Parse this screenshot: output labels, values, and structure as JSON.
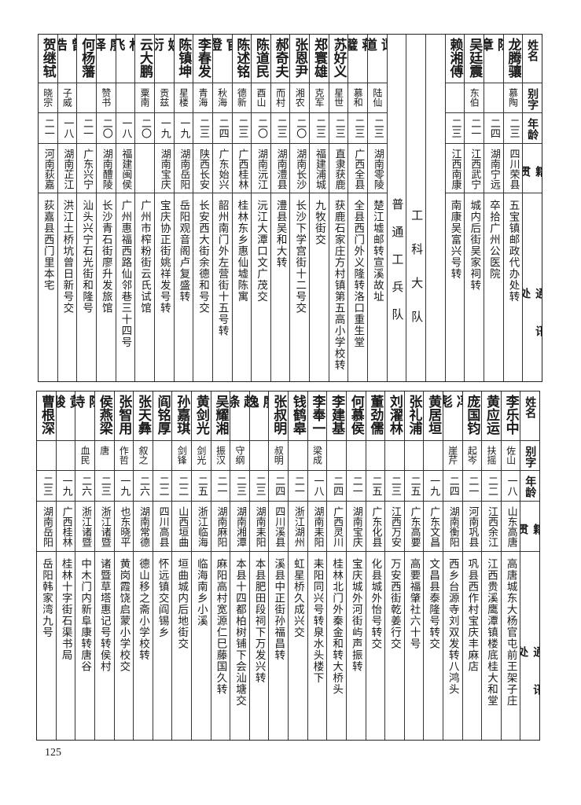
{
  "header_labels": {
    "name": "姓名",
    "alias": "别字",
    "age": "年龄",
    "native": "籍贯",
    "address": "通讯处"
  },
  "top_table": {
    "columns": [
      {
        "name": "龙腾骧",
        "alias": "慕陶",
        "age": "二三",
        "native": "四川荣县",
        "address": "五宝镇邮政代办处转"
      },
      {
        "name": "陈章",
        "alias": "",
        "age": "二四",
        "native": "湖南宁远",
        "address": "卒拾广州公医院"
      },
      {
        "name": "吴廷震",
        "alias": "东伯",
        "age": "二一",
        "native": "江西武宁",
        "address": "城内后街吴家祠转"
      },
      {
        "name": "赖湘傅",
        "alias": "",
        "age": "二三",
        "native": "江西南康",
        "address": "南康吴富兴号转"
      },
      {
        "section": ""
      },
      {
        "section": "工科大队"
      },
      {
        "section": "普通工兵队"
      },
      {
        "name": "谭道",
        "alias": "陆仙",
        "age": "二三",
        "native": "湖南零陵",
        "address": "楚江墟邮转宣溪故址"
      },
      {
        "name": "蒋璧",
        "alias": "慕和",
        "age": "二三",
        "native": "广西全县",
        "address": "全县西门外义隆转洛口重生堂"
      },
      {
        "name": "苏好义",
        "alias": "星世",
        "age": "二三",
        "native": "直隶获鹿",
        "address": "获鹿石家庄方村镇第五高小学校转"
      },
      {
        "name": "郑寰雄",
        "alias": "克军",
        "age": "二三",
        "native": "福建浦城",
        "address": "九牧街交"
      },
      {
        "name": "张恩尹",
        "alias": "湘农",
        "age": "二〇",
        "native": "湖南长沙",
        "address": "长沙下学宫街十二号交"
      },
      {
        "name": "郝奇夫",
        "alias": "而村",
        "age": "二三",
        "native": "湖南澧县",
        "address": "澧县吴和大转"
      },
      {
        "name": "陈道民",
        "alias": "酉山",
        "age": "二〇",
        "native": "湖南沅江",
        "address": "沅江大潭口文广茂交"
      },
      {
        "name": "陈述铭",
        "alias": "德新",
        "age": "二三",
        "native": "广西桂林",
        "address": "桂林东乡惠仙墟陈寓"
      },
      {
        "name": "官澄",
        "alias": "秋海",
        "age": "二四",
        "native": "广东始兴",
        "address": "韶州南门外左营街十五号转"
      },
      {
        "name": "李春发",
        "alias": "青海",
        "age": "二三",
        "native": "陕西长安",
        "address": "长安西大街余德和号交"
      },
      {
        "name": "陈镇坤",
        "alias": "星楼",
        "age": "一九",
        "native": "湖南岳阳",
        "address": "岳阳观音阁卢复盛转"
      },
      {
        "name": "姚衍",
        "alias": "贡兹",
        "age": "一九",
        "native": "湖南宝庆",
        "address": "宝庆协正街姚祥发号转"
      },
      {
        "name": "云大鹏",
        "alias": "粟南",
        "age": "二〇",
        "native": "",
        "address": "广州市榨粉街云氏试馆"
      },
      {
        "name": "林飞",
        "alias": "",
        "age": "一八",
        "native": "福建闽侯",
        "address": "广州惠福西路仙邻巷三十四号"
      },
      {
        "name": "廖译",
        "alias": "赞书",
        "age": "二〇",
        "native": "湖南醴陵",
        "address": "长沙青石街廖升发旅馆"
      },
      {
        "name": "何杨藩",
        "alias": "",
        "age": "二一",
        "native": "广东兴宁",
        "address": "汕头兴宁石光街和隆号"
      },
      {
        "name": "曾浩",
        "alias": "子威",
        "age": "一八",
        "native": "湖南芷江",
        "address": "洪江土桥坑曾日新号交"
      },
      {
        "name": "贺继轼",
        "alias": "晓宗",
        "age": "二一",
        "native": "河南荻嘉",
        "address": "荻嘉县西门里本宅"
      }
    ]
  },
  "bottom_table": {
    "columns": [
      {
        "name": "李乐中",
        "alias": "佐山",
        "age": "一八",
        "native": "山东高唐",
        "address": "高唐城东大杨官屯前王架子庄"
      },
      {
        "name": "黄应运",
        "alias": "扶摇",
        "age": "二二",
        "native": "江西余江",
        "address": "江西贵溪鹰潭镇楼底桂大和堂"
      },
      {
        "name": "庞国钧",
        "alias": "起岑",
        "age": "二一",
        "native": "河南巩县",
        "address": "巩县西作村宝庆丰麻店"
      },
      {
        "name": "冯彪",
        "alias": "崖芹",
        "age": "二四",
        "native": "湖南衡阳",
        "address": "西乡台源寺刘双发转八鸿头"
      },
      {
        "name": "黄居垣",
        "alias": "",
        "age": "一九",
        "native": "广东文昌",
        "address": "文昌县泰隆号转交"
      },
      {
        "name": "张礼浦",
        "alias": "",
        "age": "二五",
        "native": "广东高要",
        "address": "高要福肇社六十号"
      },
      {
        "name": "刘濯林",
        "alias": "",
        "age": "二三",
        "native": "江西万安",
        "address": "万安西街乾姜行交"
      },
      {
        "name": "董劲儒",
        "alias": "",
        "age": "二五",
        "native": "广东化县",
        "address": "化县城外怡号转交"
      },
      {
        "name": "何慕侯",
        "alias": "",
        "age": "二一",
        "native": "湖南宝庆",
        "address": "宝庆城外河街屿声振转"
      },
      {
        "name": "李建基",
        "alias": "",
        "age": "二四",
        "native": "广西灵川",
        "address": "桂林北门外秦金和转大桥头"
      },
      {
        "name": "李奉一",
        "alias": "梁成",
        "age": "一八",
        "native": "湖南耒阳",
        "address": "耒阳同兴号转泉水头楼下"
      },
      {
        "name": "钱鹤皋",
        "alias": "",
        "age": "二一",
        "native": "浙江湖州",
        "address": "虹星桥久成兴交"
      },
      {
        "name": "张叔明",
        "alias": "叔明",
        "age": "二四",
        "native": "四川溪县",
        "address": "溪县中正街孙福昌转"
      },
      {
        "name": "廖逸",
        "alias": "",
        "age": "二三",
        "native": "湖南耒阳",
        "address": "本县肥田段祠下万发兴转"
      },
      {
        "name": "赵涤",
        "alias": "守纲",
        "age": "二三",
        "native": "湖南湘潭",
        "address": "本县十四都柏树铺下会汕塘交"
      },
      {
        "name": "吴耀湘",
        "alias": "振汉",
        "age": "二一",
        "native": "湖南麻阳",
        "address": "麻阳高村宽源仁巳藤国久转"
      },
      {
        "name": "黄剑光",
        "alias": "剑光",
        "age": "二五",
        "native": "浙江临海",
        "address": "临海南乡小溪"
      },
      {
        "name": "孙嘉琪",
        "alias": "剑锋",
        "age": "二二",
        "native": "山西垣曲",
        "address": "垣曲城内后地街交"
      },
      {
        "name": "阎铭厚",
        "alias": "",
        "age": "二二",
        "native": "四川高县",
        "address": "怀远镇交阎锡乡"
      },
      {
        "name": "张天彝",
        "alias": "叙之",
        "age": "二六",
        "native": "湖南常德",
        "address": "德山移之斋小学校转"
      },
      {
        "name": "张智用",
        "alias": "作哲",
        "age": "一九",
        "native": "也东晓平",
        "address": "黄岗霞饶启蒙小学校交"
      },
      {
        "name": "侯燕梁",
        "alias": "唐",
        "age": "二三",
        "native": "浙江诸暨",
        "address": "诸暨草塔惠记号转侯村"
      },
      {
        "name": "陈诗",
        "alias": "血民",
        "age": "二六",
        "native": "浙江诸暨",
        "address": "中木门内新阜康转唐谷"
      },
      {
        "name": "黄骏",
        "alias": "",
        "age": "一九",
        "native": "广西桂林",
        "address": "桂林十字街石渠书局"
      },
      {
        "name": "曹根深",
        "alias": "",
        "age": "二三",
        "native": "湖南岳阳",
        "address": "岳阳韩家湾九号"
      }
    ]
  },
  "page_number": "125"
}
